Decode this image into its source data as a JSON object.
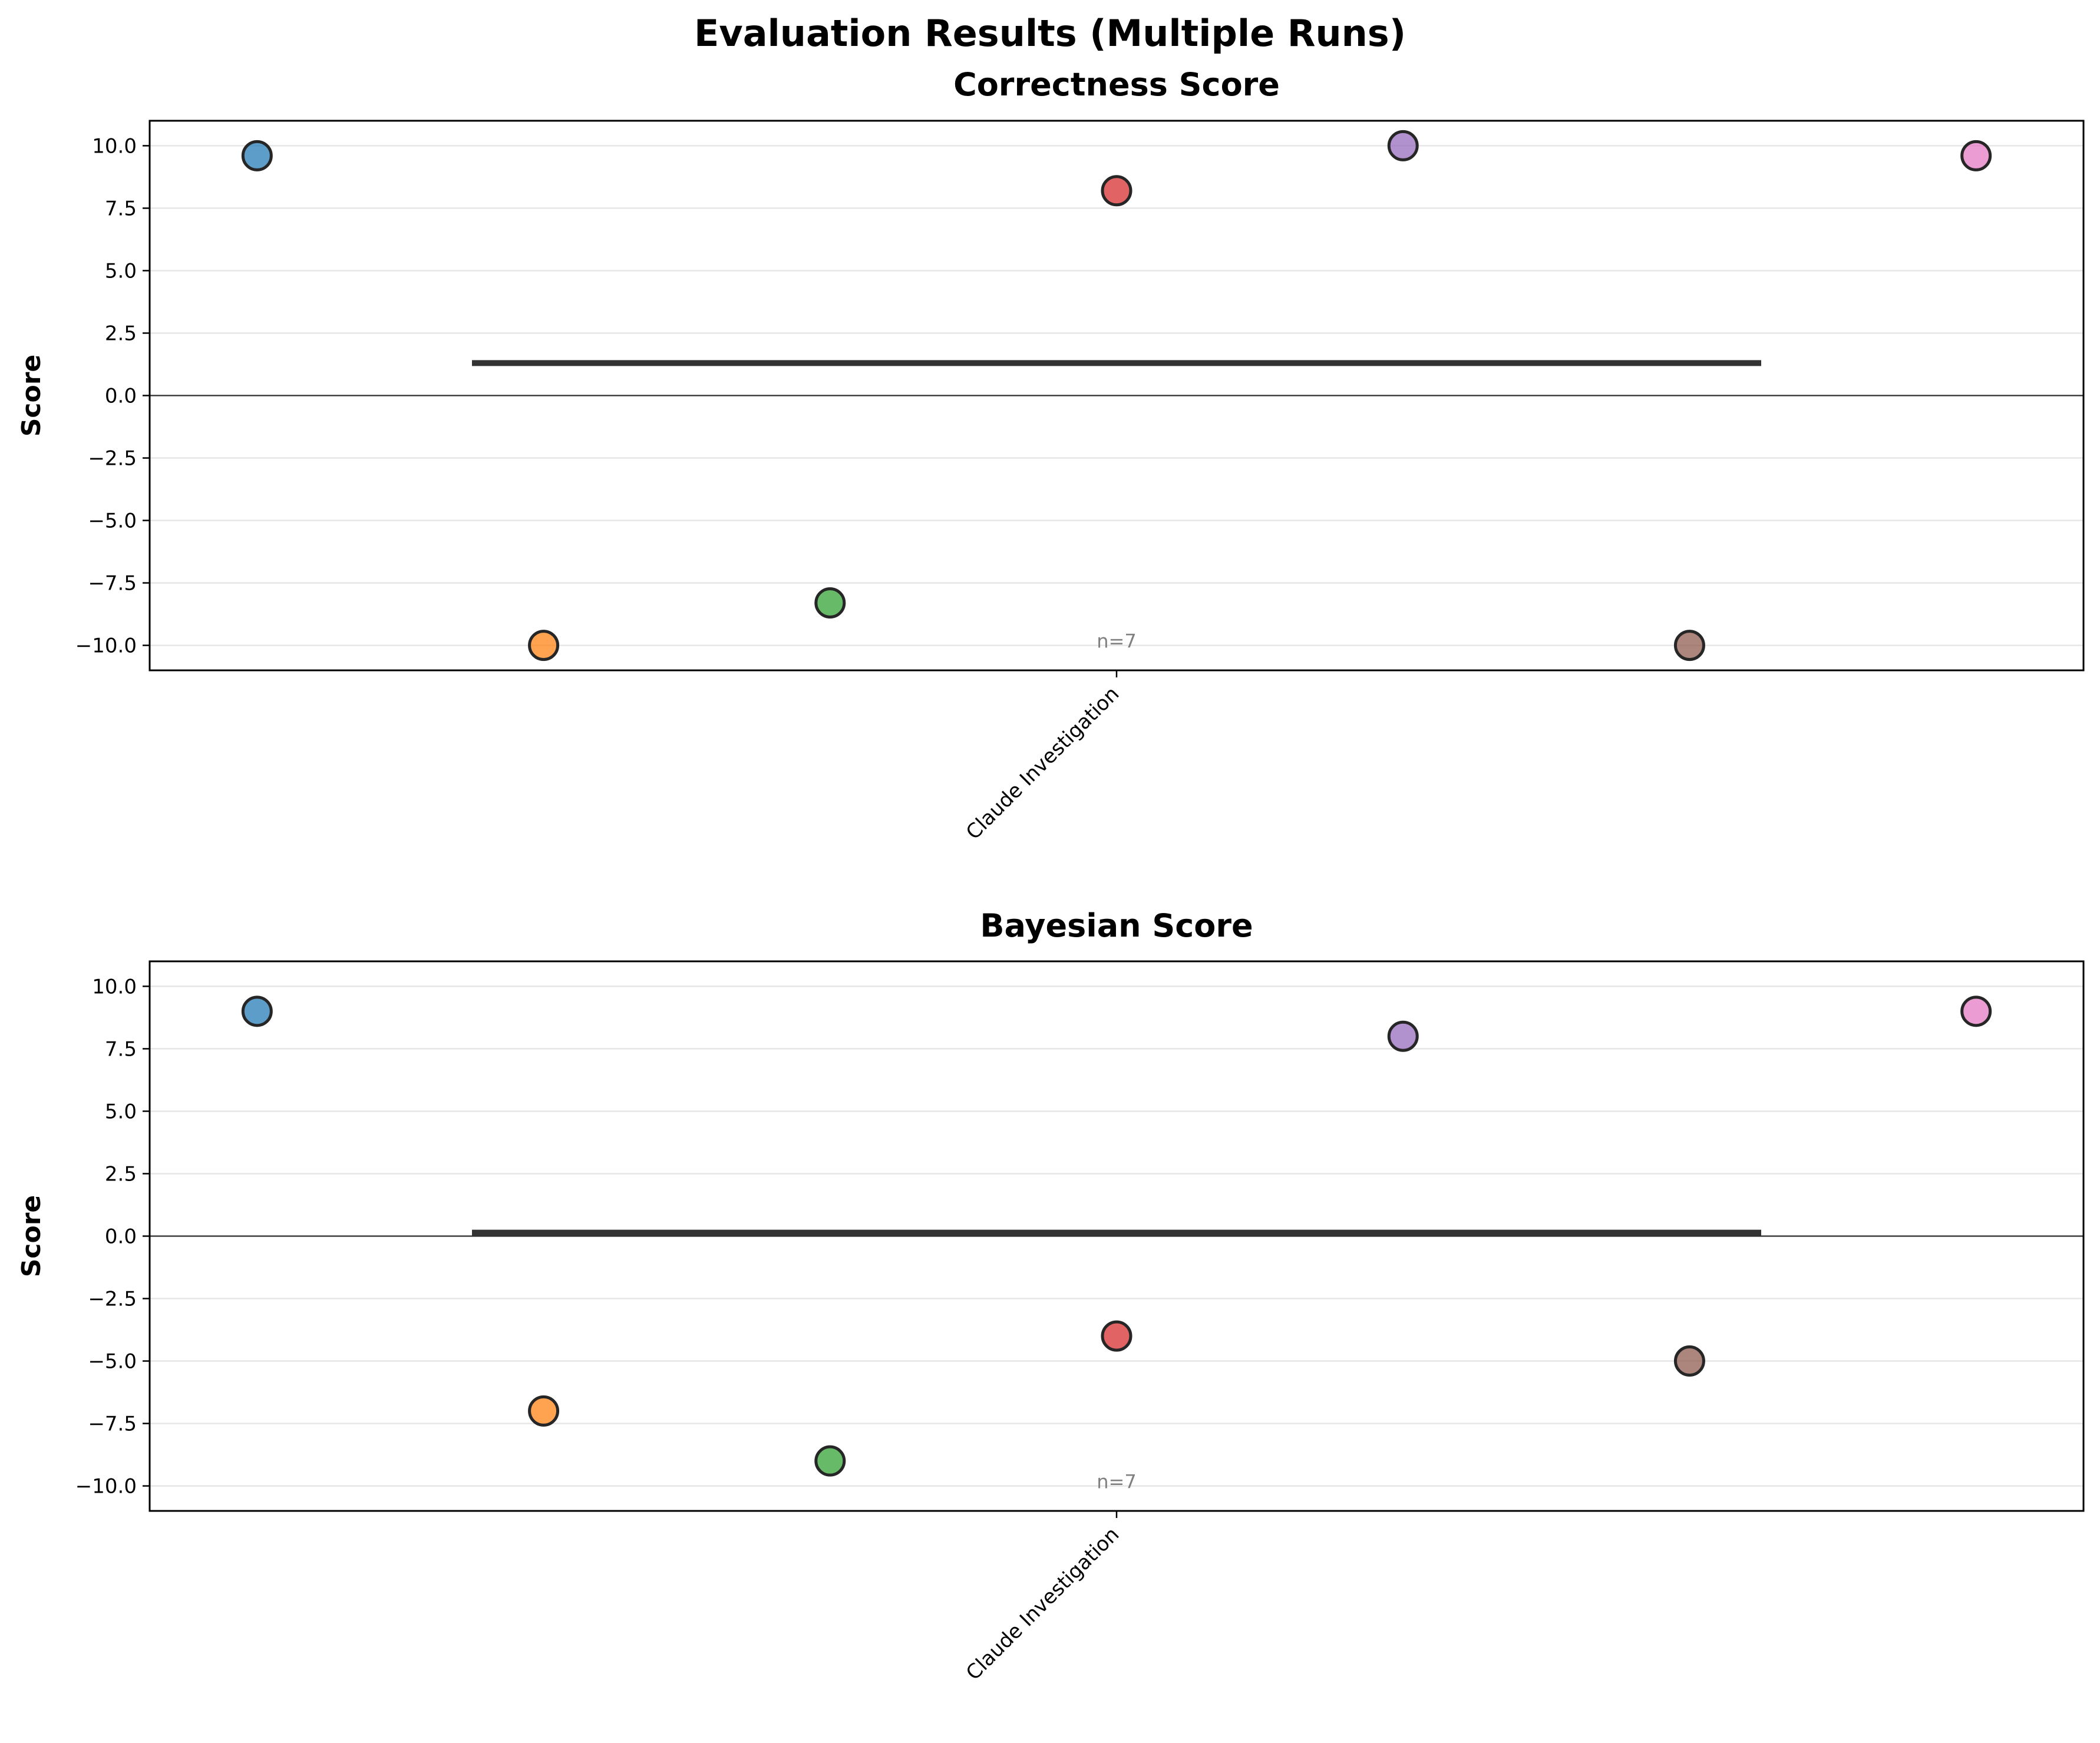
{
  "title": "Evaluation Results (Multiple Runs)",
  "colors": {
    "points": [
      "#1f77b4",
      "#ff7f0e",
      "#2ca02c",
      "#d62728",
      "#9467bd",
      "#8c564b",
      "#e377c2"
    ],
    "point_edge": "#262626",
    "mean_line": "#333333",
    "zero_line": "#000000",
    "grid": "#e6e6e6"
  },
  "chart_data": [
    {
      "type": "scatter",
      "title": "Correctness Score",
      "ylabel": "Score",
      "category": "Claude Investigation",
      "annotation": "n=7",
      "ylim": [
        -11,
        11
      ],
      "yticks": [
        "−10.0",
        "−7.5",
        "−5.0",
        "−2.5",
        "0.0",
        "2.5",
        "5.0",
        "7.5",
        "10.0"
      ],
      "ytick_values": [
        -10,
        -7.5,
        -5,
        -2.5,
        0,
        2.5,
        5,
        7.5,
        10
      ],
      "values": [
        9.6,
        -10,
        -8.3,
        8.2,
        10,
        -10,
        9.6
      ],
      "mean": 1.3,
      "grid": true
    },
    {
      "type": "scatter",
      "title": "Bayesian Score",
      "ylabel": "Score",
      "category": "Claude Investigation",
      "annotation": "n=7",
      "ylim": [
        -11,
        11
      ],
      "yticks": [
        "−10.0",
        "−7.5",
        "−5.0",
        "−2.5",
        "0.0",
        "2.5",
        "5.0",
        "7.5",
        "10.0"
      ],
      "ytick_values": [
        -10,
        -7.5,
        -5,
        -2.5,
        0,
        2.5,
        5,
        7.5,
        10
      ],
      "values": [
        9,
        -7,
        -9,
        -4,
        8,
        -5,
        9
      ],
      "mean": 0.14,
      "grid": true
    }
  ]
}
